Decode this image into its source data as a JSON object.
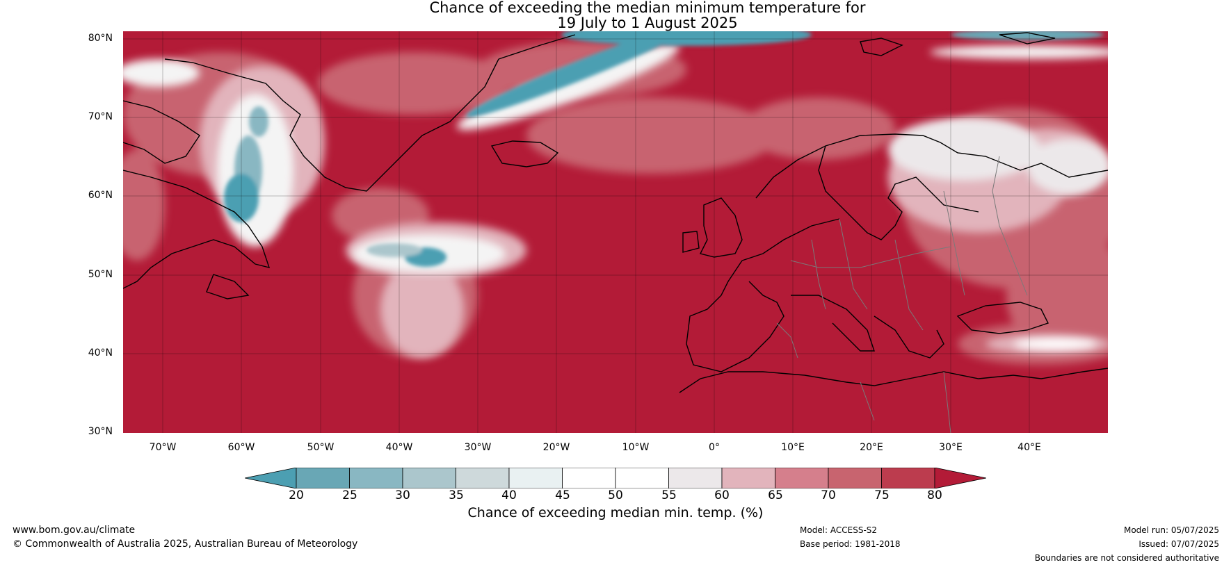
{
  "title": {
    "line1": "Chance of exceeding the median minimum temperature for",
    "line2": "19 July to 1 August 2025"
  },
  "map": {
    "lat_labels": [
      "80°N",
      "70°N",
      "60°N",
      "50°N",
      "40°N",
      "30°N"
    ],
    "lon_labels": [
      "70°W",
      "60°W",
      "50°W",
      "40°W",
      "30°W",
      "20°W",
      "10°W",
      "0°",
      "10°E",
      "20°E",
      "30°E",
      "40°E"
    ],
    "lat_range": [
      30,
      80
    ],
    "lon_range": [
      -75,
      50
    ],
    "dominant_color": "#b31b37",
    "cool_anomaly_color": "#4da6b8"
  },
  "colorbar": {
    "ticks": [
      "20",
      "25",
      "30",
      "35",
      "40",
      "45",
      "50",
      "55",
      "60",
      "65",
      "70",
      "75",
      "80"
    ],
    "colors": [
      "#4c9fb2",
      "#69a7b5",
      "#89b7c2",
      "#abc6cc",
      "#ced9db",
      "#e9f1f2",
      "#ffffff",
      "#ffffff",
      "#ece8ea",
      "#e2b4bc",
      "#d57f8c",
      "#c8646f",
      "#bc3c4e",
      "#b31b37"
    ],
    "label": "Chance of exceeding median min. temp. (%)"
  },
  "footer": {
    "website": "www.bom.gov.au/climate",
    "copyright": "© Commonwealth of Australia 2025, Australian Bureau of Meteorology",
    "model": "Model: ACCESS-S2",
    "base_period": "Base period: 1981-2018",
    "model_run": "Model run: 05/07/2025",
    "issued": "Issued: 07/07/2025",
    "disclaimer": "Boundaries are not considered authoritative"
  }
}
